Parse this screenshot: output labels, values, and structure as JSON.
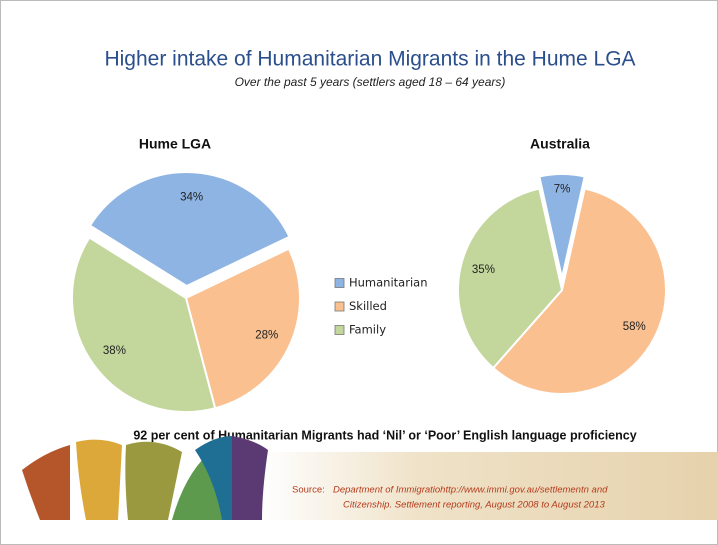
{
  "title": "Higher intake of Humanitarian Migrants in the Hume LGA",
  "subtitle": "Over the past 5 years (settlers aged 18 – 64 years)",
  "note": "92 per cent of Humanitarian Migrants had ‘Nil’ or ‘Poor’ English language proficiency",
  "source_label": "Source:",
  "source": [
    "Department of Immigratiohttp://www.immi.gov.au/settlementn and",
    "Citizenship. Settlement reporting, August 2008 to August 2013"
  ],
  "chart_data": [
    {
      "type": "pie",
      "title": "Hume LGA",
      "categories": [
        "Humanitarian",
        "Skilled",
        "Family"
      ],
      "values": [
        34,
        28,
        38
      ],
      "value_labels": [
        "34%",
        "28%",
        "38%"
      ],
      "colors": [
        "#8eb4e3",
        "#fac090",
        "#c3d69b"
      ],
      "exploded": [
        true,
        false,
        false
      ]
    },
    {
      "type": "pie",
      "title": "Australia",
      "categories": [
        "Humanitarian",
        "Skilled",
        "Family"
      ],
      "values": [
        7,
        58,
        35
      ],
      "value_labels": [
        "7%",
        "58%",
        "35%"
      ],
      "colors": [
        "#8eb4e3",
        "#fac090",
        "#c3d69b"
      ],
      "exploded": [
        true,
        false,
        false
      ]
    }
  ]
}
